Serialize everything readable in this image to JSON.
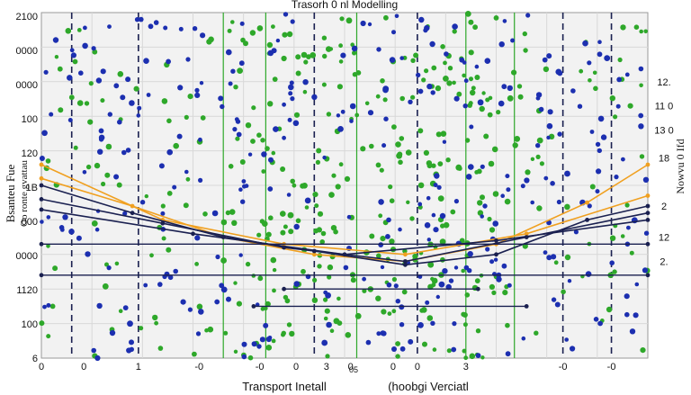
{
  "chart_data": {
    "type": "scatter",
    "title": "Trasorh 0 nl Modelling",
    "xlabel": "Transport Inetall",
    "xlabel_right": "(hoobgi Verciatl",
    "ylabel": "Bsanteu Fue",
    "ylabel_sub": "Oo ronte gvattau",
    "right_label": "Nowvu 0 Ifd",
    "y_tick_labels": [
      "2100",
      "0000",
      "0000",
      "100",
      "120",
      "1B",
      "000",
      "0000",
      "1120",
      "100",
      "6"
    ],
    "right_tick_labels": [
      "12.",
      "11 0",
      "13  0",
      "18",
      "2",
      "12",
      "2."
    ],
    "x_tick_labels": [
      "0",
      "0",
      "1",
      "-0",
      "-0",
      "0",
      "3",
      "0",
      "0",
      "3",
      "0",
      "-0",
      "-0"
    ],
    "x_annotation": "05",
    "grid": true,
    "legend": "none",
    "colors": {
      "green": "#2ea82a",
      "blue": "#1c2fb0",
      "orange": "#f0a020",
      "navy": "#1a2050",
      "grid": "#d8d8d8"
    },
    "series": [
      {
        "kind": "trend",
        "color": "orange",
        "x": [
          0,
          0.15,
          0.3,
          0.45,
          0.6,
          0.75,
          0.9,
          1.0
        ],
        "y": [
          0.52,
          0.44,
          0.35,
          0.3,
          0.28,
          0.33,
          0.45,
          0.56
        ]
      },
      {
        "kind": "trend",
        "color": "orange",
        "x": [
          0,
          0.2,
          0.4,
          0.6,
          0.8,
          1.0
        ],
        "y": [
          0.56,
          0.4,
          0.33,
          0.3,
          0.36,
          0.47
        ]
      },
      {
        "kind": "trend",
        "color": "navy",
        "x": [
          0,
          0.15,
          0.3,
          0.45,
          0.6,
          0.75,
          0.9,
          1.0
        ],
        "y": [
          0.5,
          0.42,
          0.35,
          0.31,
          0.27,
          0.3,
          0.4,
          0.44
        ]
      },
      {
        "kind": "trend",
        "color": "navy",
        "x": [
          0,
          0.2,
          0.4,
          0.6,
          0.8,
          1.0
        ],
        "y": [
          0.46,
          0.39,
          0.32,
          0.28,
          0.35,
          0.42
        ]
      },
      {
        "kind": "trend",
        "color": "navy",
        "x": [
          0,
          0.25,
          0.5,
          0.75,
          1.0
        ],
        "y": [
          0.43,
          0.36,
          0.3,
          0.34,
          0.4
        ]
      },
      {
        "kind": "level",
        "color": "navy",
        "x": [
          0,
          1.0
        ],
        "y": [
          0.33,
          0.33
        ]
      },
      {
        "kind": "level",
        "color": "navy",
        "x": [
          0,
          1.0
        ],
        "y": [
          0.24,
          0.24
        ]
      },
      {
        "kind": "level",
        "color": "navy",
        "x": [
          0.4,
          0.72
        ],
        "y": [
          0.2,
          0.2
        ]
      },
      {
        "kind": "level",
        "color": "navy",
        "x": [
          0.35,
          0.8
        ],
        "y": [
          0.15,
          0.15
        ]
      }
    ],
    "vertical_lines": [
      {
        "x": 0.05,
        "color": "navy",
        "style": "dashed"
      },
      {
        "x": 0.16,
        "color": "navy",
        "style": "dashed"
      },
      {
        "x": 0.45,
        "color": "navy",
        "style": "dashed"
      },
      {
        "x": 0.62,
        "color": "navy",
        "style": "dashed"
      },
      {
        "x": 0.86,
        "color": "navy",
        "style": "dashed"
      },
      {
        "x": 0.94,
        "color": "navy",
        "style": "dashed"
      },
      {
        "x": 0.3,
        "color": "green",
        "style": "solid"
      },
      {
        "x": 0.37,
        "color": "green",
        "style": "solid"
      },
      {
        "x": 0.52,
        "color": "green",
        "style": "solid"
      },
      {
        "x": 0.7,
        "color": "green",
        "style": "solid"
      },
      {
        "x": 0.78,
        "color": "green",
        "style": "solid"
      }
    ],
    "scatter_density": {
      "green_points": 420,
      "blue_points": 340,
      "seed": 17
    }
  }
}
